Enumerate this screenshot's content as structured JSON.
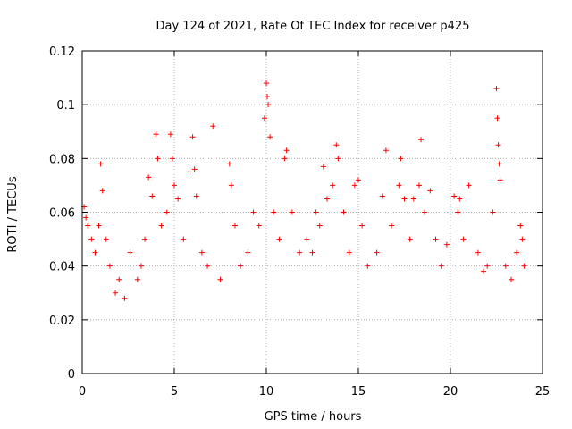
{
  "chart_data": {
    "type": "scatter",
    "title": "Day 124 of 2021, Rate Of TEC Index for receiver p425",
    "xlabel": "GPS time / hours",
    "ylabel": "ROTI / TECUs",
    "xlim": [
      0,
      25
    ],
    "ylim": [
      0,
      0.12
    ],
    "x_ticks": [
      "0",
      "5",
      "10",
      "15",
      "20",
      "25"
    ],
    "y_ticks": [
      "0",
      "0.02",
      "0.04",
      "0.06",
      "0.08",
      "0.1",
      "0.12"
    ],
    "grid": true,
    "marker": "+",
    "color": "#ff0000",
    "series": [
      {
        "points": [
          [
            0.1,
            0.062
          ],
          [
            0.2,
            0.058
          ],
          [
            0.3,
            0.055
          ],
          [
            0.5,
            0.05
          ],
          [
            0.7,
            0.045
          ],
          [
            0.9,
            0.055
          ],
          [
            1.0,
            0.078
          ],
          [
            1.1,
            0.068
          ],
          [
            1.3,
            0.05
          ],
          [
            1.5,
            0.04
          ],
          [
            1.8,
            0.03
          ],
          [
            2.0,
            0.035
          ],
          [
            2.3,
            0.028
          ],
          [
            2.6,
            0.045
          ],
          [
            3.0,
            0.035
          ],
          [
            3.2,
            0.04
          ],
          [
            3.4,
            0.05
          ],
          [
            3.6,
            0.073
          ],
          [
            3.8,
            0.066
          ],
          [
            4.0,
            0.089
          ],
          [
            4.1,
            0.08
          ],
          [
            4.3,
            0.055
          ],
          [
            4.6,
            0.06
          ],
          [
            4.8,
            0.089
          ],
          [
            4.9,
            0.08
          ],
          [
            5.0,
            0.07
          ],
          [
            5.2,
            0.065
          ],
          [
            5.5,
            0.05
          ],
          [
            5.8,
            0.075
          ],
          [
            6.0,
            0.088
          ],
          [
            6.1,
            0.076
          ],
          [
            6.2,
            0.066
          ],
          [
            6.5,
            0.045
          ],
          [
            6.8,
            0.04
          ],
          [
            7.1,
            0.092
          ],
          [
            7.5,
            0.035
          ],
          [
            8.0,
            0.078
          ],
          [
            8.1,
            0.07
          ],
          [
            8.3,
            0.055
          ],
          [
            8.6,
            0.04
          ],
          [
            9.0,
            0.045
          ],
          [
            9.3,
            0.06
          ],
          [
            9.6,
            0.055
          ],
          [
            9.9,
            0.095
          ],
          [
            10.0,
            0.108
          ],
          [
            10.05,
            0.103
          ],
          [
            10.1,
            0.1
          ],
          [
            10.2,
            0.088
          ],
          [
            10.4,
            0.06
          ],
          [
            10.7,
            0.05
          ],
          [
            11.0,
            0.08
          ],
          [
            11.1,
            0.083
          ],
          [
            11.4,
            0.06
          ],
          [
            11.8,
            0.045
          ],
          [
            12.2,
            0.05
          ],
          [
            12.5,
            0.045
          ],
          [
            12.7,
            0.06
          ],
          [
            12.9,
            0.055
          ],
          [
            13.1,
            0.077
          ],
          [
            13.3,
            0.065
          ],
          [
            13.6,
            0.07
          ],
          [
            13.8,
            0.085
          ],
          [
            13.9,
            0.08
          ],
          [
            14.2,
            0.06
          ],
          [
            14.5,
            0.045
          ],
          [
            14.8,
            0.07
          ],
          [
            15.0,
            0.072
          ],
          [
            15.2,
            0.055
          ],
          [
            15.5,
            0.04
          ],
          [
            16.0,
            0.045
          ],
          [
            16.3,
            0.066
          ],
          [
            16.5,
            0.083
          ],
          [
            16.8,
            0.055
          ],
          [
            17.2,
            0.07
          ],
          [
            17.3,
            0.08
          ],
          [
            17.5,
            0.065
          ],
          [
            17.8,
            0.05
          ],
          [
            18.0,
            0.065
          ],
          [
            18.3,
            0.07
          ],
          [
            18.4,
            0.087
          ],
          [
            18.6,
            0.06
          ],
          [
            18.9,
            0.068
          ],
          [
            19.2,
            0.05
          ],
          [
            19.5,
            0.04
          ],
          [
            19.8,
            0.048
          ],
          [
            20.2,
            0.066
          ],
          [
            20.4,
            0.06
          ],
          [
            20.5,
            0.065
          ],
          [
            20.7,
            0.05
          ],
          [
            21.0,
            0.07
          ],
          [
            21.5,
            0.045
          ],
          [
            21.8,
            0.038
          ],
          [
            22.0,
            0.04
          ],
          [
            22.3,
            0.06
          ],
          [
            22.5,
            0.106
          ],
          [
            22.55,
            0.095
          ],
          [
            22.6,
            0.085
          ],
          [
            22.65,
            0.078
          ],
          [
            22.7,
            0.072
          ],
          [
            23.0,
            0.04
          ],
          [
            23.3,
            0.035
          ],
          [
            23.6,
            0.045
          ],
          [
            23.8,
            0.055
          ],
          [
            23.9,
            0.05
          ],
          [
            24.0,
            0.04
          ]
        ]
      }
    ]
  }
}
